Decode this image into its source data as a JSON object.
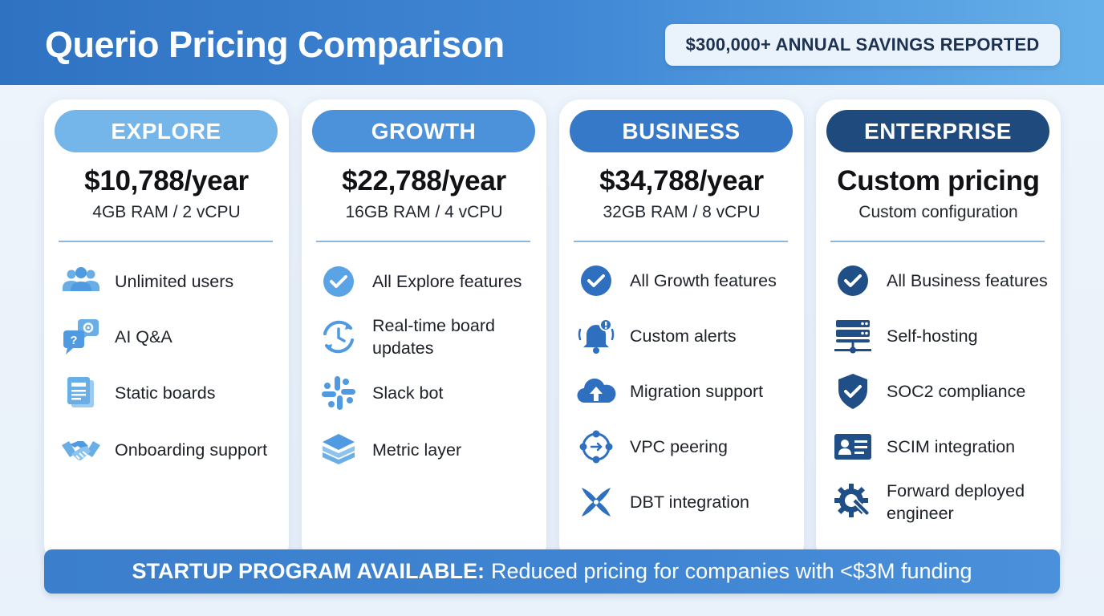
{
  "header": {
    "title": "Querio Pricing Comparison",
    "savings_badge": "$300,000+ ANNUAL SAVINGS REPORTED"
  },
  "colors": {
    "explore": "#74b5ea",
    "growth": "#4b92da",
    "business": "#3579c8",
    "enterprise": "#1e4a7e",
    "icon_light": "#6aaee6",
    "icon_mid": "#3a82d0",
    "icon_dark": "#1f4f86"
  },
  "plans": [
    {
      "tier": "EXPLORE",
      "price": "$10,788/year",
      "spec": "4GB RAM / 2 vCPU",
      "features": [
        {
          "icon": "users-icon",
          "label": "Unlimited users"
        },
        {
          "icon": "chat-question-icon",
          "label": "AI Q&A"
        },
        {
          "icon": "board-document-icon",
          "label": "Static boards"
        },
        {
          "icon": "handshake-icon",
          "label": "Onboarding support"
        }
      ]
    },
    {
      "tier": "GROWTH",
      "price": "$22,788/year",
      "spec": "16GB RAM / 4 vCPU",
      "features": [
        {
          "icon": "check-circle-icon",
          "label": "All Explore features"
        },
        {
          "icon": "refresh-clock-icon",
          "label": "Real-time board updates"
        },
        {
          "icon": "slack-icon",
          "label": "Slack bot"
        },
        {
          "icon": "layers-icon",
          "label": "Metric layer"
        }
      ]
    },
    {
      "tier": "BUSINESS",
      "price": "$34,788/year",
      "spec": "32GB RAM / 8 vCPU",
      "features": [
        {
          "icon": "check-circle-icon",
          "label": "All Growth features"
        },
        {
          "icon": "bell-alert-icon",
          "label": "Custom alerts"
        },
        {
          "icon": "cloud-upload-icon",
          "label": "Migration support"
        },
        {
          "icon": "network-peering-icon",
          "label": "VPC peering"
        },
        {
          "icon": "dbt-icon",
          "label": "DBT integration"
        }
      ]
    },
    {
      "tier": "ENTERPRISE",
      "price": "Custom pricing",
      "spec": "Custom configuration",
      "features": [
        {
          "icon": "check-circle-icon",
          "label": "All Business features"
        },
        {
          "icon": "server-icon",
          "label": "Self-hosting"
        },
        {
          "icon": "shield-check-icon",
          "label": "SOC2 compliance"
        },
        {
          "icon": "id-card-icon",
          "label": "SCIM integration"
        },
        {
          "icon": "gear-wrench-icon",
          "label": "Forward deployed engineer"
        }
      ]
    }
  ],
  "banner": {
    "strong": "STARTUP PROGRAM AVAILABLE:",
    "text": "Reduced pricing for companies with <$3M funding"
  }
}
